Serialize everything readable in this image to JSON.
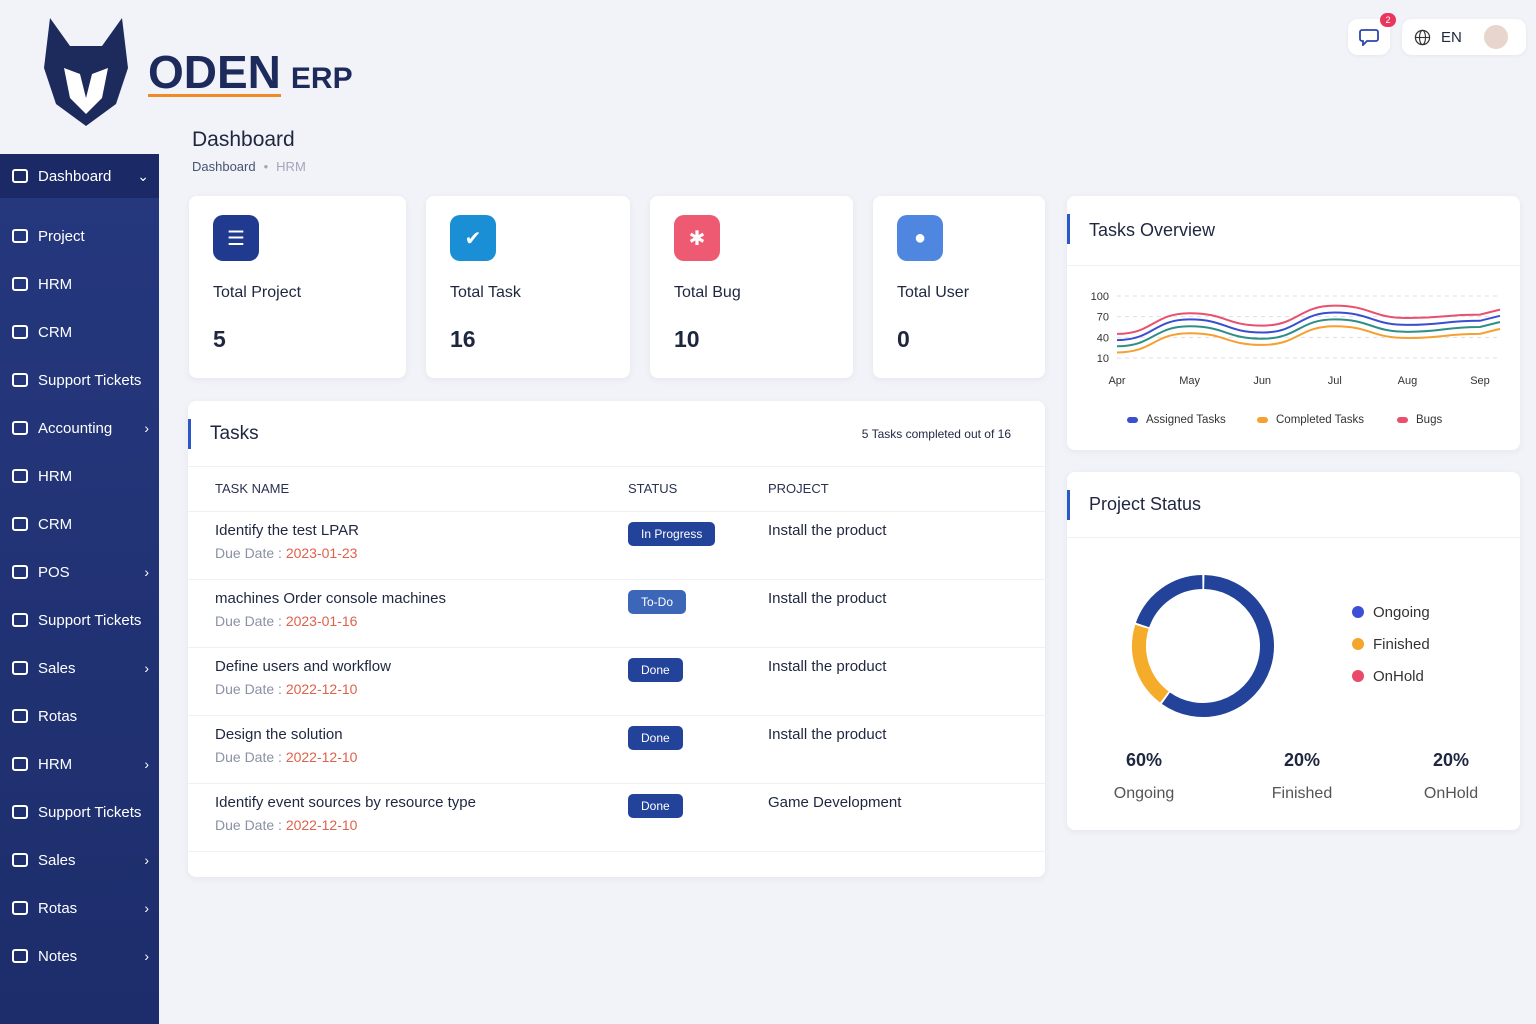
{
  "brand": {
    "name": "ODEN",
    "suffix": "ERP"
  },
  "topbar": {
    "notification_count": "2",
    "language": "EN"
  },
  "page": {
    "title": "Dashboard",
    "breadcrumb": [
      "Dashboard",
      "HRM"
    ]
  },
  "sidebar": {
    "items": [
      {
        "label": "Dashboard",
        "chevron": "⌄"
      },
      {
        "label": "Project"
      },
      {
        "label": "HRM"
      },
      {
        "label": "CRM"
      },
      {
        "label": "Support Tickets"
      },
      {
        "label": "Accounting",
        "chevron": "›"
      },
      {
        "label": "HRM"
      },
      {
        "label": "CRM"
      },
      {
        "label": "POS",
        "chevron": "›"
      },
      {
        "label": "Support Tickets"
      },
      {
        "label": "Sales",
        "chevron": "›"
      },
      {
        "label": "Rotas"
      },
      {
        "label": "HRM",
        "chevron": "›"
      },
      {
        "label": "Support Tickets"
      },
      {
        "label": "Sales",
        "chevron": "›"
      },
      {
        "label": "Rotas",
        "chevron": "›"
      },
      {
        "label": "Notes",
        "chevron": "›"
      }
    ]
  },
  "stats": [
    {
      "label": "Total Project",
      "value": "5",
      "color": "#1f3a8f",
      "icon": "list-icon"
    },
    {
      "label": "Total Task",
      "value": "16",
      "color": "#1a8fd6",
      "icon": "check-icon"
    },
    {
      "label": "Total Bug",
      "value": "10",
      "color": "#ee5a72",
      "icon": "bug-icon"
    },
    {
      "label": "Total User",
      "value": "0",
      "color": "#4f86e0",
      "icon": "user-icon"
    }
  ],
  "tasks": {
    "title": "Tasks",
    "summary": "5 Tasks completed out of 16",
    "columns": [
      "TASK NAME",
      "STATUS",
      "PROJECT"
    ],
    "due_label": "Due Date : ",
    "rows": [
      {
        "name": "Identify the test LPAR",
        "due": "2023-01-23",
        "status": "In Progress",
        "project": "Install the product"
      },
      {
        "name": "machines Order console machines",
        "due": "2023-01-16",
        "status": "To-Do",
        "project": "Install the product"
      },
      {
        "name": "Define users and workflow",
        "due": "2022-12-10",
        "status": "Done",
        "project": "Install the product"
      },
      {
        "name": "Design the solution",
        "due": "2022-12-10",
        "status": "Done",
        "project": "Install the product"
      },
      {
        "name": "Identify event sources by resource type",
        "due": "2022-12-10",
        "status": "Done",
        "project": "Game Development"
      }
    ]
  },
  "chart_data": [
    {
      "type": "line",
      "title": "Tasks Overview",
      "categories": [
        "Apr",
        "May",
        "Jun",
        "Jul",
        "Aug",
        "Sep"
      ],
      "y_ticks": [
        10,
        40,
        70,
        100
      ],
      "ylim": [
        10,
        100
      ],
      "grid": true,
      "legend": "bottom",
      "series": [
        {
          "name": "Bugs",
          "color": "#e8506e",
          "values": [
            45,
            75,
            57,
            86,
            68,
            73
          ]
        },
        {
          "name": "Assigned Tasks",
          "color": "#3a4fd0",
          "values": [
            36,
            66,
            47,
            76,
            58,
            64
          ]
        },
        {
          "color": "#2f8f86",
          "values": [
            27,
            56,
            38,
            66,
            48,
            55
          ]
        },
        {
          "name": "Completed Tasks",
          "color": "#f5a030",
          "values": [
            18,
            46,
            29,
            56,
            39,
            45
          ]
        }
      ],
      "legend_items": [
        {
          "name": "Assigned Tasks",
          "color": "#3a4fd0"
        },
        {
          "name": "Completed Tasks",
          "color": "#f5a030"
        },
        {
          "name": "Bugs",
          "color": "#e8506e"
        }
      ]
    },
    {
      "type": "pie",
      "title": "Project Status",
      "slices": [
        {
          "name": "Ongoing",
          "value": 60,
          "label": "60%",
          "color": "#23439a"
        },
        {
          "name": "Finished",
          "value": 20,
          "label": "20%",
          "color": "#f5ac2a"
        },
        {
          "name": "OnHold",
          "value": 20,
          "label": "20%",
          "color": "#23439a"
        }
      ],
      "legend": [
        {
          "name": "Ongoing",
          "color": "#3d4fd6"
        },
        {
          "name": "Finished",
          "color": "#f5a52a"
        },
        {
          "name": "OnHold",
          "color": "#ea4a6a"
        }
      ]
    }
  ]
}
